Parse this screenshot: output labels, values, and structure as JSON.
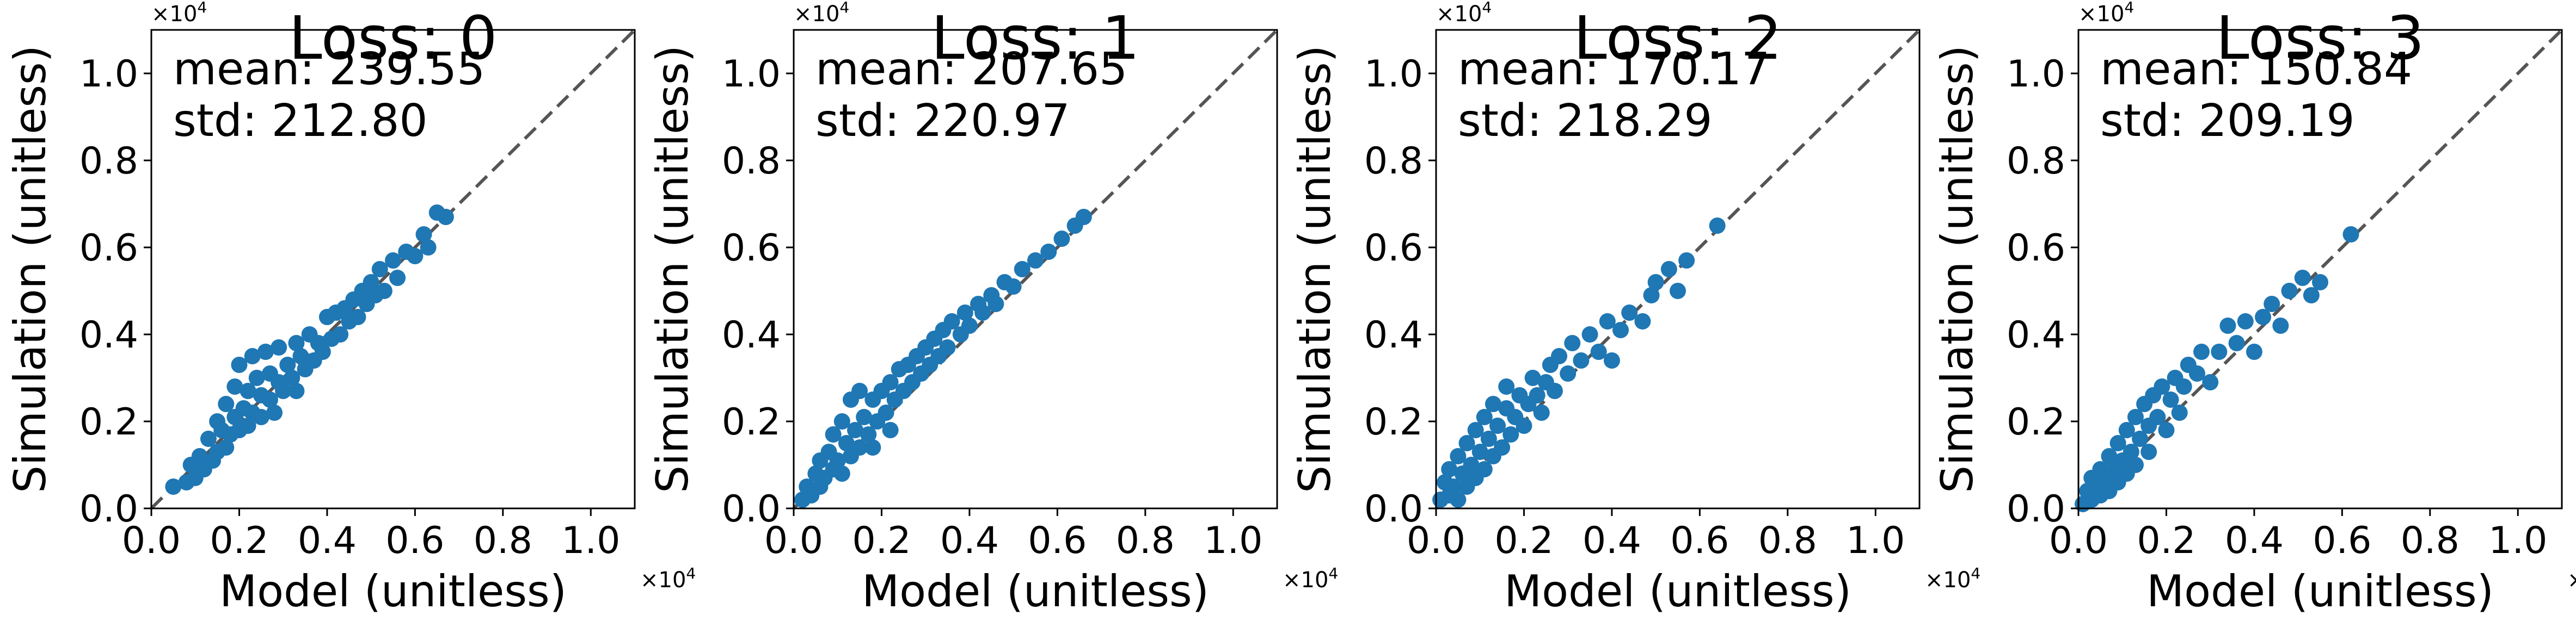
{
  "chart_data": [
    {
      "type": "scatter",
      "title": "Loss: 0",
      "xlabel": "Model (unitless)",
      "ylabel": "Simulation (unitless)",
      "axis_multiplier": "×10^4",
      "xlim": [
        0,
        1.1
      ],
      "ylim": [
        0,
        1.1
      ],
      "xticks": [
        "0.0",
        "0.2",
        "0.4",
        "0.6",
        "0.8",
        "1.0"
      ],
      "yticks": [
        "0.0",
        "0.2",
        "0.4",
        "0.6",
        "0.8",
        "1.0"
      ],
      "stats": {
        "mean": "mean: 239.55",
        "std": "std: 212.80"
      },
      "reference_line": "y = x (dashed)",
      "marker_color": "#1f77b4",
      "grid": false,
      "points": [
        {
          "x": 0.05,
          "y": 0.05
        },
        {
          "x": 0.08,
          "y": 0.06
        },
        {
          "x": 0.09,
          "y": 0.1
        },
        {
          "x": 0.1,
          "y": 0.07
        },
        {
          "x": 0.11,
          "y": 0.12
        },
        {
          "x": 0.12,
          "y": 0.09
        },
        {
          "x": 0.13,
          "y": 0.16
        },
        {
          "x": 0.14,
          "y": 0.11
        },
        {
          "x": 0.15,
          "y": 0.2
        },
        {
          "x": 0.15,
          "y": 0.13
        },
        {
          "x": 0.16,
          "y": 0.18
        },
        {
          "x": 0.17,
          "y": 0.14
        },
        {
          "x": 0.17,
          "y": 0.24
        },
        {
          "x": 0.18,
          "y": 0.17
        },
        {
          "x": 0.19,
          "y": 0.21
        },
        {
          "x": 0.19,
          "y": 0.28
        },
        {
          "x": 0.2,
          "y": 0.18
        },
        {
          "x": 0.2,
          "y": 0.33
        },
        {
          "x": 0.21,
          "y": 0.23
        },
        {
          "x": 0.22,
          "y": 0.19
        },
        {
          "x": 0.22,
          "y": 0.27
        },
        {
          "x": 0.23,
          "y": 0.35
        },
        {
          "x": 0.23,
          "y": 0.22
        },
        {
          "x": 0.24,
          "y": 0.3
        },
        {
          "x": 0.25,
          "y": 0.21
        },
        {
          "x": 0.25,
          "y": 0.26
        },
        {
          "x": 0.26,
          "y": 0.36
        },
        {
          "x": 0.27,
          "y": 0.25
        },
        {
          "x": 0.27,
          "y": 0.31
        },
        {
          "x": 0.28,
          "y": 0.22
        },
        {
          "x": 0.29,
          "y": 0.29
        },
        {
          "x": 0.29,
          "y": 0.37
        },
        {
          "x": 0.3,
          "y": 0.27
        },
        {
          "x": 0.31,
          "y": 0.33
        },
        {
          "x": 0.32,
          "y": 0.3
        },
        {
          "x": 0.33,
          "y": 0.38
        },
        {
          "x": 0.33,
          "y": 0.27
        },
        {
          "x": 0.34,
          "y": 0.35
        },
        {
          "x": 0.35,
          "y": 0.32
        },
        {
          "x": 0.36,
          "y": 0.4
        },
        {
          "x": 0.37,
          "y": 0.34
        },
        {
          "x": 0.38,
          "y": 0.38
        },
        {
          "x": 0.39,
          "y": 0.36
        },
        {
          "x": 0.4,
          "y": 0.44
        },
        {
          "x": 0.41,
          "y": 0.39
        },
        {
          "x": 0.42,
          "y": 0.45
        },
        {
          "x": 0.43,
          "y": 0.4
        },
        {
          "x": 0.44,
          "y": 0.46
        },
        {
          "x": 0.45,
          "y": 0.43
        },
        {
          "x": 0.46,
          "y": 0.48
        },
        {
          "x": 0.47,
          "y": 0.44
        },
        {
          "x": 0.48,
          "y": 0.5
        },
        {
          "x": 0.49,
          "y": 0.47
        },
        {
          "x": 0.5,
          "y": 0.52
        },
        {
          "x": 0.51,
          "y": 0.49
        },
        {
          "x": 0.52,
          "y": 0.55
        },
        {
          "x": 0.53,
          "y": 0.5
        },
        {
          "x": 0.55,
          "y": 0.57
        },
        {
          "x": 0.56,
          "y": 0.53
        },
        {
          "x": 0.58,
          "y": 0.59
        },
        {
          "x": 0.6,
          "y": 0.58
        },
        {
          "x": 0.62,
          "y": 0.63
        },
        {
          "x": 0.63,
          "y": 0.6
        },
        {
          "x": 0.65,
          "y": 0.68
        },
        {
          "x": 0.67,
          "y": 0.67
        }
      ]
    },
    {
      "type": "scatter",
      "title": "Loss: 1",
      "xlabel": "Model (unitless)",
      "ylabel": "Simulation (unitless)",
      "axis_multiplier": "×10^4",
      "xlim": [
        0,
        1.1
      ],
      "ylim": [
        0,
        1.1
      ],
      "xticks": [
        "0.0",
        "0.2",
        "0.4",
        "0.6",
        "0.8",
        "1.0"
      ],
      "yticks": [
        "0.0",
        "0.2",
        "0.4",
        "0.6",
        "0.8",
        "1.0"
      ],
      "stats": {
        "mean": "mean: 207.65",
        "std": "std: 220.97"
      },
      "reference_line": "y = x (dashed)",
      "marker_color": "#1f77b4",
      "grid": false,
      "points": [
        {
          "x": 0.02,
          "y": 0.02
        },
        {
          "x": 0.03,
          "y": 0.05
        },
        {
          "x": 0.04,
          "y": 0.03
        },
        {
          "x": 0.05,
          "y": 0.08
        },
        {
          "x": 0.06,
          "y": 0.05
        },
        {
          "x": 0.06,
          "y": 0.11
        },
        {
          "x": 0.07,
          "y": 0.07
        },
        {
          "x": 0.08,
          "y": 0.13
        },
        {
          "x": 0.09,
          "y": 0.09
        },
        {
          "x": 0.09,
          "y": 0.17
        },
        {
          "x": 0.1,
          "y": 0.11
        },
        {
          "x": 0.11,
          "y": 0.2
        },
        {
          "x": 0.11,
          "y": 0.08
        },
        {
          "x": 0.12,
          "y": 0.15
        },
        {
          "x": 0.13,
          "y": 0.25
        },
        {
          "x": 0.13,
          "y": 0.12
        },
        {
          "x": 0.14,
          "y": 0.18
        },
        {
          "x": 0.15,
          "y": 0.27
        },
        {
          "x": 0.15,
          "y": 0.14
        },
        {
          "x": 0.16,
          "y": 0.21
        },
        {
          "x": 0.17,
          "y": 0.17
        },
        {
          "x": 0.18,
          "y": 0.25
        },
        {
          "x": 0.18,
          "y": 0.14
        },
        {
          "x": 0.19,
          "y": 0.2
        },
        {
          "x": 0.2,
          "y": 0.27
        },
        {
          "x": 0.21,
          "y": 0.22
        },
        {
          "x": 0.22,
          "y": 0.29
        },
        {
          "x": 0.22,
          "y": 0.18
        },
        {
          "x": 0.23,
          "y": 0.25
        },
        {
          "x": 0.24,
          "y": 0.32
        },
        {
          "x": 0.25,
          "y": 0.27
        },
        {
          "x": 0.26,
          "y": 0.33
        },
        {
          "x": 0.27,
          "y": 0.29
        },
        {
          "x": 0.28,
          "y": 0.35
        },
        {
          "x": 0.29,
          "y": 0.31
        },
        {
          "x": 0.3,
          "y": 0.37
        },
        {
          "x": 0.31,
          "y": 0.33
        },
        {
          "x": 0.32,
          "y": 0.39
        },
        {
          "x": 0.33,
          "y": 0.35
        },
        {
          "x": 0.34,
          "y": 0.41
        },
        {
          "x": 0.35,
          "y": 0.37
        },
        {
          "x": 0.36,
          "y": 0.43
        },
        {
          "x": 0.38,
          "y": 0.4
        },
        {
          "x": 0.39,
          "y": 0.45
        },
        {
          "x": 0.4,
          "y": 0.42
        },
        {
          "x": 0.42,
          "y": 0.47
        },
        {
          "x": 0.43,
          "y": 0.45
        },
        {
          "x": 0.45,
          "y": 0.49
        },
        {
          "x": 0.46,
          "y": 0.47
        },
        {
          "x": 0.48,
          "y": 0.52
        },
        {
          "x": 0.5,
          "y": 0.51
        },
        {
          "x": 0.52,
          "y": 0.55
        },
        {
          "x": 0.55,
          "y": 0.57
        },
        {
          "x": 0.58,
          "y": 0.59
        },
        {
          "x": 0.61,
          "y": 0.62
        },
        {
          "x": 0.64,
          "y": 0.65
        },
        {
          "x": 0.66,
          "y": 0.67
        }
      ]
    },
    {
      "type": "scatter",
      "title": "Loss: 2",
      "xlabel": "Model (unitless)",
      "ylabel": "Simulation (unitless)",
      "axis_multiplier": "×10^4",
      "xlim": [
        0,
        1.1
      ],
      "ylim": [
        0,
        1.1
      ],
      "xticks": [
        "0.0",
        "0.2",
        "0.4",
        "0.6",
        "0.8",
        "1.0"
      ],
      "yticks": [
        "0.0",
        "0.2",
        "0.4",
        "0.6",
        "0.8",
        "1.0"
      ],
      "stats": {
        "mean": "mean: 170.17",
        "std": "std: 218.29"
      },
      "reference_line": "y = x (dashed)",
      "marker_color": "#1f77b4",
      "grid": false,
      "points": [
        {
          "x": 0.01,
          "y": 0.02
        },
        {
          "x": 0.02,
          "y": 0.06
        },
        {
          "x": 0.03,
          "y": 0.03
        },
        {
          "x": 0.03,
          "y": 0.09
        },
        {
          "x": 0.04,
          "y": 0.05
        },
        {
          "x": 0.05,
          "y": 0.12
        },
        {
          "x": 0.05,
          "y": 0.02
        },
        {
          "x": 0.06,
          "y": 0.08
        },
        {
          "x": 0.07,
          "y": 0.15
        },
        {
          "x": 0.07,
          "y": 0.05
        },
        {
          "x": 0.08,
          "y": 0.1
        },
        {
          "x": 0.09,
          "y": 0.18
        },
        {
          "x": 0.09,
          "y": 0.07
        },
        {
          "x": 0.1,
          "y": 0.13
        },
        {
          "x": 0.11,
          "y": 0.21
        },
        {
          "x": 0.11,
          "y": 0.09
        },
        {
          "x": 0.12,
          "y": 0.16
        },
        {
          "x": 0.13,
          "y": 0.24
        },
        {
          "x": 0.13,
          "y": 0.12
        },
        {
          "x": 0.14,
          "y": 0.19
        },
        {
          "x": 0.15,
          "y": 0.14
        },
        {
          "x": 0.16,
          "y": 0.23
        },
        {
          "x": 0.16,
          "y": 0.28
        },
        {
          "x": 0.17,
          "y": 0.17
        },
        {
          "x": 0.18,
          "y": 0.21
        },
        {
          "x": 0.19,
          "y": 0.26
        },
        {
          "x": 0.2,
          "y": 0.19
        },
        {
          "x": 0.21,
          "y": 0.24
        },
        {
          "x": 0.22,
          "y": 0.3
        },
        {
          "x": 0.23,
          "y": 0.26
        },
        {
          "x": 0.24,
          "y": 0.22
        },
        {
          "x": 0.25,
          "y": 0.29
        },
        {
          "x": 0.26,
          "y": 0.33
        },
        {
          "x": 0.27,
          "y": 0.27
        },
        {
          "x": 0.28,
          "y": 0.35
        },
        {
          "x": 0.3,
          "y": 0.31
        },
        {
          "x": 0.31,
          "y": 0.38
        },
        {
          "x": 0.33,
          "y": 0.34
        },
        {
          "x": 0.35,
          "y": 0.4
        },
        {
          "x": 0.37,
          "y": 0.36
        },
        {
          "x": 0.39,
          "y": 0.43
        },
        {
          "x": 0.4,
          "y": 0.34
        },
        {
          "x": 0.42,
          "y": 0.41
        },
        {
          "x": 0.44,
          "y": 0.45
        },
        {
          "x": 0.47,
          "y": 0.43
        },
        {
          "x": 0.49,
          "y": 0.49
        },
        {
          "x": 0.5,
          "y": 0.52
        },
        {
          "x": 0.53,
          "y": 0.55
        },
        {
          "x": 0.55,
          "y": 0.5
        },
        {
          "x": 0.57,
          "y": 0.57
        },
        {
          "x": 0.64,
          "y": 0.65
        }
      ]
    },
    {
      "type": "scatter",
      "title": "Loss: 3",
      "xlabel": "Model (unitless)",
      "ylabel": "Simulation (unitless)",
      "axis_multiplier": "×10^4",
      "xlim": [
        0,
        1.1
      ],
      "ylim": [
        0,
        1.1
      ],
      "xticks": [
        "0.0",
        "0.2",
        "0.4",
        "0.6",
        "0.8",
        "1.0"
      ],
      "yticks": [
        "0.0",
        "0.2",
        "0.4",
        "0.6",
        "0.8",
        "1.0"
      ],
      "stats": {
        "mean": "mean: 150.84",
        "std": "std: 209.19"
      },
      "reference_line": "y = x (dashed)",
      "marker_color": "#1f77b4",
      "grid": false,
      "points": [
        {
          "x": 0.01,
          "y": 0.01
        },
        {
          "x": 0.02,
          "y": 0.04
        },
        {
          "x": 0.03,
          "y": 0.02
        },
        {
          "x": 0.03,
          "y": 0.07
        },
        {
          "x": 0.04,
          "y": 0.05
        },
        {
          "x": 0.05,
          "y": 0.09
        },
        {
          "x": 0.05,
          "y": 0.03
        },
        {
          "x": 0.06,
          "y": 0.07
        },
        {
          "x": 0.07,
          "y": 0.12
        },
        {
          "x": 0.07,
          "y": 0.04
        },
        {
          "x": 0.08,
          "y": 0.09
        },
        {
          "x": 0.09,
          "y": 0.15
        },
        {
          "x": 0.09,
          "y": 0.06
        },
        {
          "x": 0.1,
          "y": 0.11
        },
        {
          "x": 0.11,
          "y": 0.18
        },
        {
          "x": 0.11,
          "y": 0.08
        },
        {
          "x": 0.12,
          "y": 0.13
        },
        {
          "x": 0.13,
          "y": 0.21
        },
        {
          "x": 0.13,
          "y": 0.1
        },
        {
          "x": 0.14,
          "y": 0.16
        },
        {
          "x": 0.15,
          "y": 0.24
        },
        {
          "x": 0.16,
          "y": 0.19
        },
        {
          "x": 0.16,
          "y": 0.13
        },
        {
          "x": 0.17,
          "y": 0.26
        },
        {
          "x": 0.18,
          "y": 0.21
        },
        {
          "x": 0.19,
          "y": 0.28
        },
        {
          "x": 0.2,
          "y": 0.18
        },
        {
          "x": 0.21,
          "y": 0.25
        },
        {
          "x": 0.22,
          "y": 0.3
        },
        {
          "x": 0.23,
          "y": 0.22
        },
        {
          "x": 0.24,
          "y": 0.28
        },
        {
          "x": 0.25,
          "y": 0.33
        },
        {
          "x": 0.27,
          "y": 0.31
        },
        {
          "x": 0.28,
          "y": 0.36
        },
        {
          "x": 0.3,
          "y": 0.29
        },
        {
          "x": 0.32,
          "y": 0.36
        },
        {
          "x": 0.34,
          "y": 0.42
        },
        {
          "x": 0.36,
          "y": 0.38
        },
        {
          "x": 0.38,
          "y": 0.43
        },
        {
          "x": 0.4,
          "y": 0.36
        },
        {
          "x": 0.42,
          "y": 0.44
        },
        {
          "x": 0.44,
          "y": 0.47
        },
        {
          "x": 0.46,
          "y": 0.42
        },
        {
          "x": 0.48,
          "y": 0.5
        },
        {
          "x": 0.51,
          "y": 0.53
        },
        {
          "x": 0.53,
          "y": 0.49
        },
        {
          "x": 0.55,
          "y": 0.52
        },
        {
          "x": 0.62,
          "y": 0.63
        }
      ]
    }
  ]
}
